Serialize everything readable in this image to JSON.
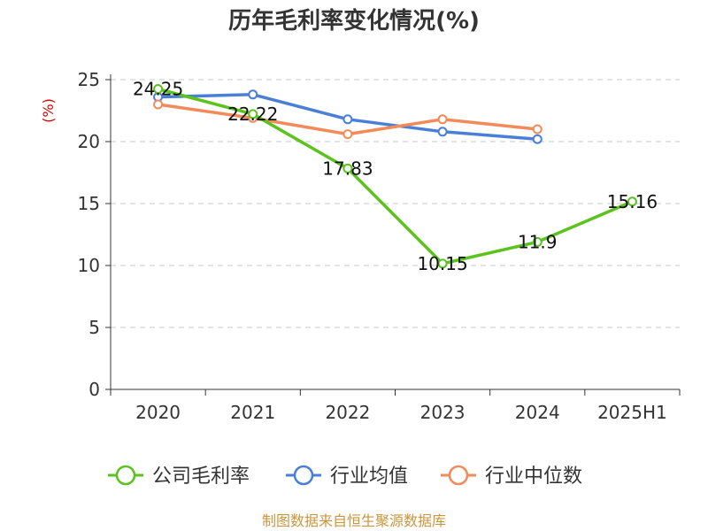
{
  "chart_data": {
    "type": "line",
    "title": "历年毛利率变化情况(%)",
    "ylabel": "(%)",
    "xlabel": "",
    "categories": [
      "2020",
      "2021",
      "2022",
      "2023",
      "2024",
      "2025H1"
    ],
    "ylim": [
      0,
      25
    ],
    "yticks": [
      0,
      5,
      10,
      15,
      20,
      25
    ],
    "grid": true,
    "legend_position": "bottom",
    "series": [
      {
        "name": "公司毛利率",
        "color": "#5bc21e",
        "values": [
          24.25,
          22.22,
          17.83,
          10.15,
          11.9,
          15.16
        ],
        "data_labels": [
          "24.25",
          "22.22",
          "17.83",
          "10.15",
          "11.9",
          "15.16"
        ]
      },
      {
        "name": "行业均值",
        "color": "#4a7fd8",
        "values": [
          23.6,
          23.8,
          21.8,
          20.8,
          20.2,
          null
        ]
      },
      {
        "name": "行业中位数",
        "color": "#f28a5a",
        "values": [
          23.0,
          21.9,
          20.6,
          21.8,
          21.0,
          null
        ]
      }
    ]
  },
  "footer": {
    "source": "制图数据来自恒生聚源数据库"
  }
}
